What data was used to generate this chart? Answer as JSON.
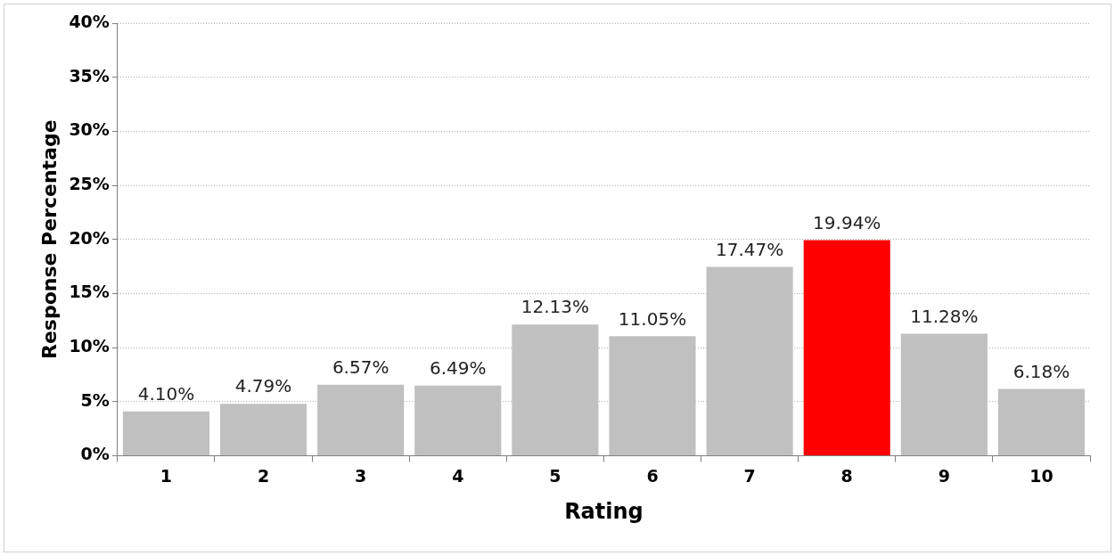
{
  "chart_data": {
    "type": "bar",
    "xlabel": "Rating",
    "ylabel": "Response Percentage",
    "categories": [
      "1",
      "2",
      "3",
      "4",
      "5",
      "6",
      "7",
      "8",
      "9",
      "10"
    ],
    "values": [
      4.1,
      4.79,
      6.57,
      6.49,
      12.13,
      11.05,
      17.47,
      19.94,
      11.28,
      6.18
    ],
    "value_labels": [
      "4.10%",
      "4.79%",
      "6.57%",
      "6.49%",
      "12.13%",
      "11.05%",
      "17.47%",
      "19.94%",
      "11.28%",
      "6.18%"
    ],
    "colors": [
      "#c0c0c0",
      "#c0c0c0",
      "#c0c0c0",
      "#c0c0c0",
      "#c0c0c0",
      "#c0c0c0",
      "#c0c0c0",
      "#ff0000",
      "#c0c0c0",
      "#c0c0c0"
    ],
    "ylim": [
      0,
      40
    ],
    "yticks": [
      {
        "value": 0,
        "label": "0%"
      },
      {
        "value": 5,
        "label": "5%"
      },
      {
        "value": 10,
        "label": "10%"
      },
      {
        "value": 15,
        "label": "15%"
      },
      {
        "value": 20,
        "label": "20%"
      },
      {
        "value": 25,
        "label": "25%"
      },
      {
        "value": 30,
        "label": "30%"
      },
      {
        "value": 35,
        "label": "35%"
      },
      {
        "value": 40,
        "label": "40%"
      }
    ],
    "grid": "y",
    "legend": false
  }
}
